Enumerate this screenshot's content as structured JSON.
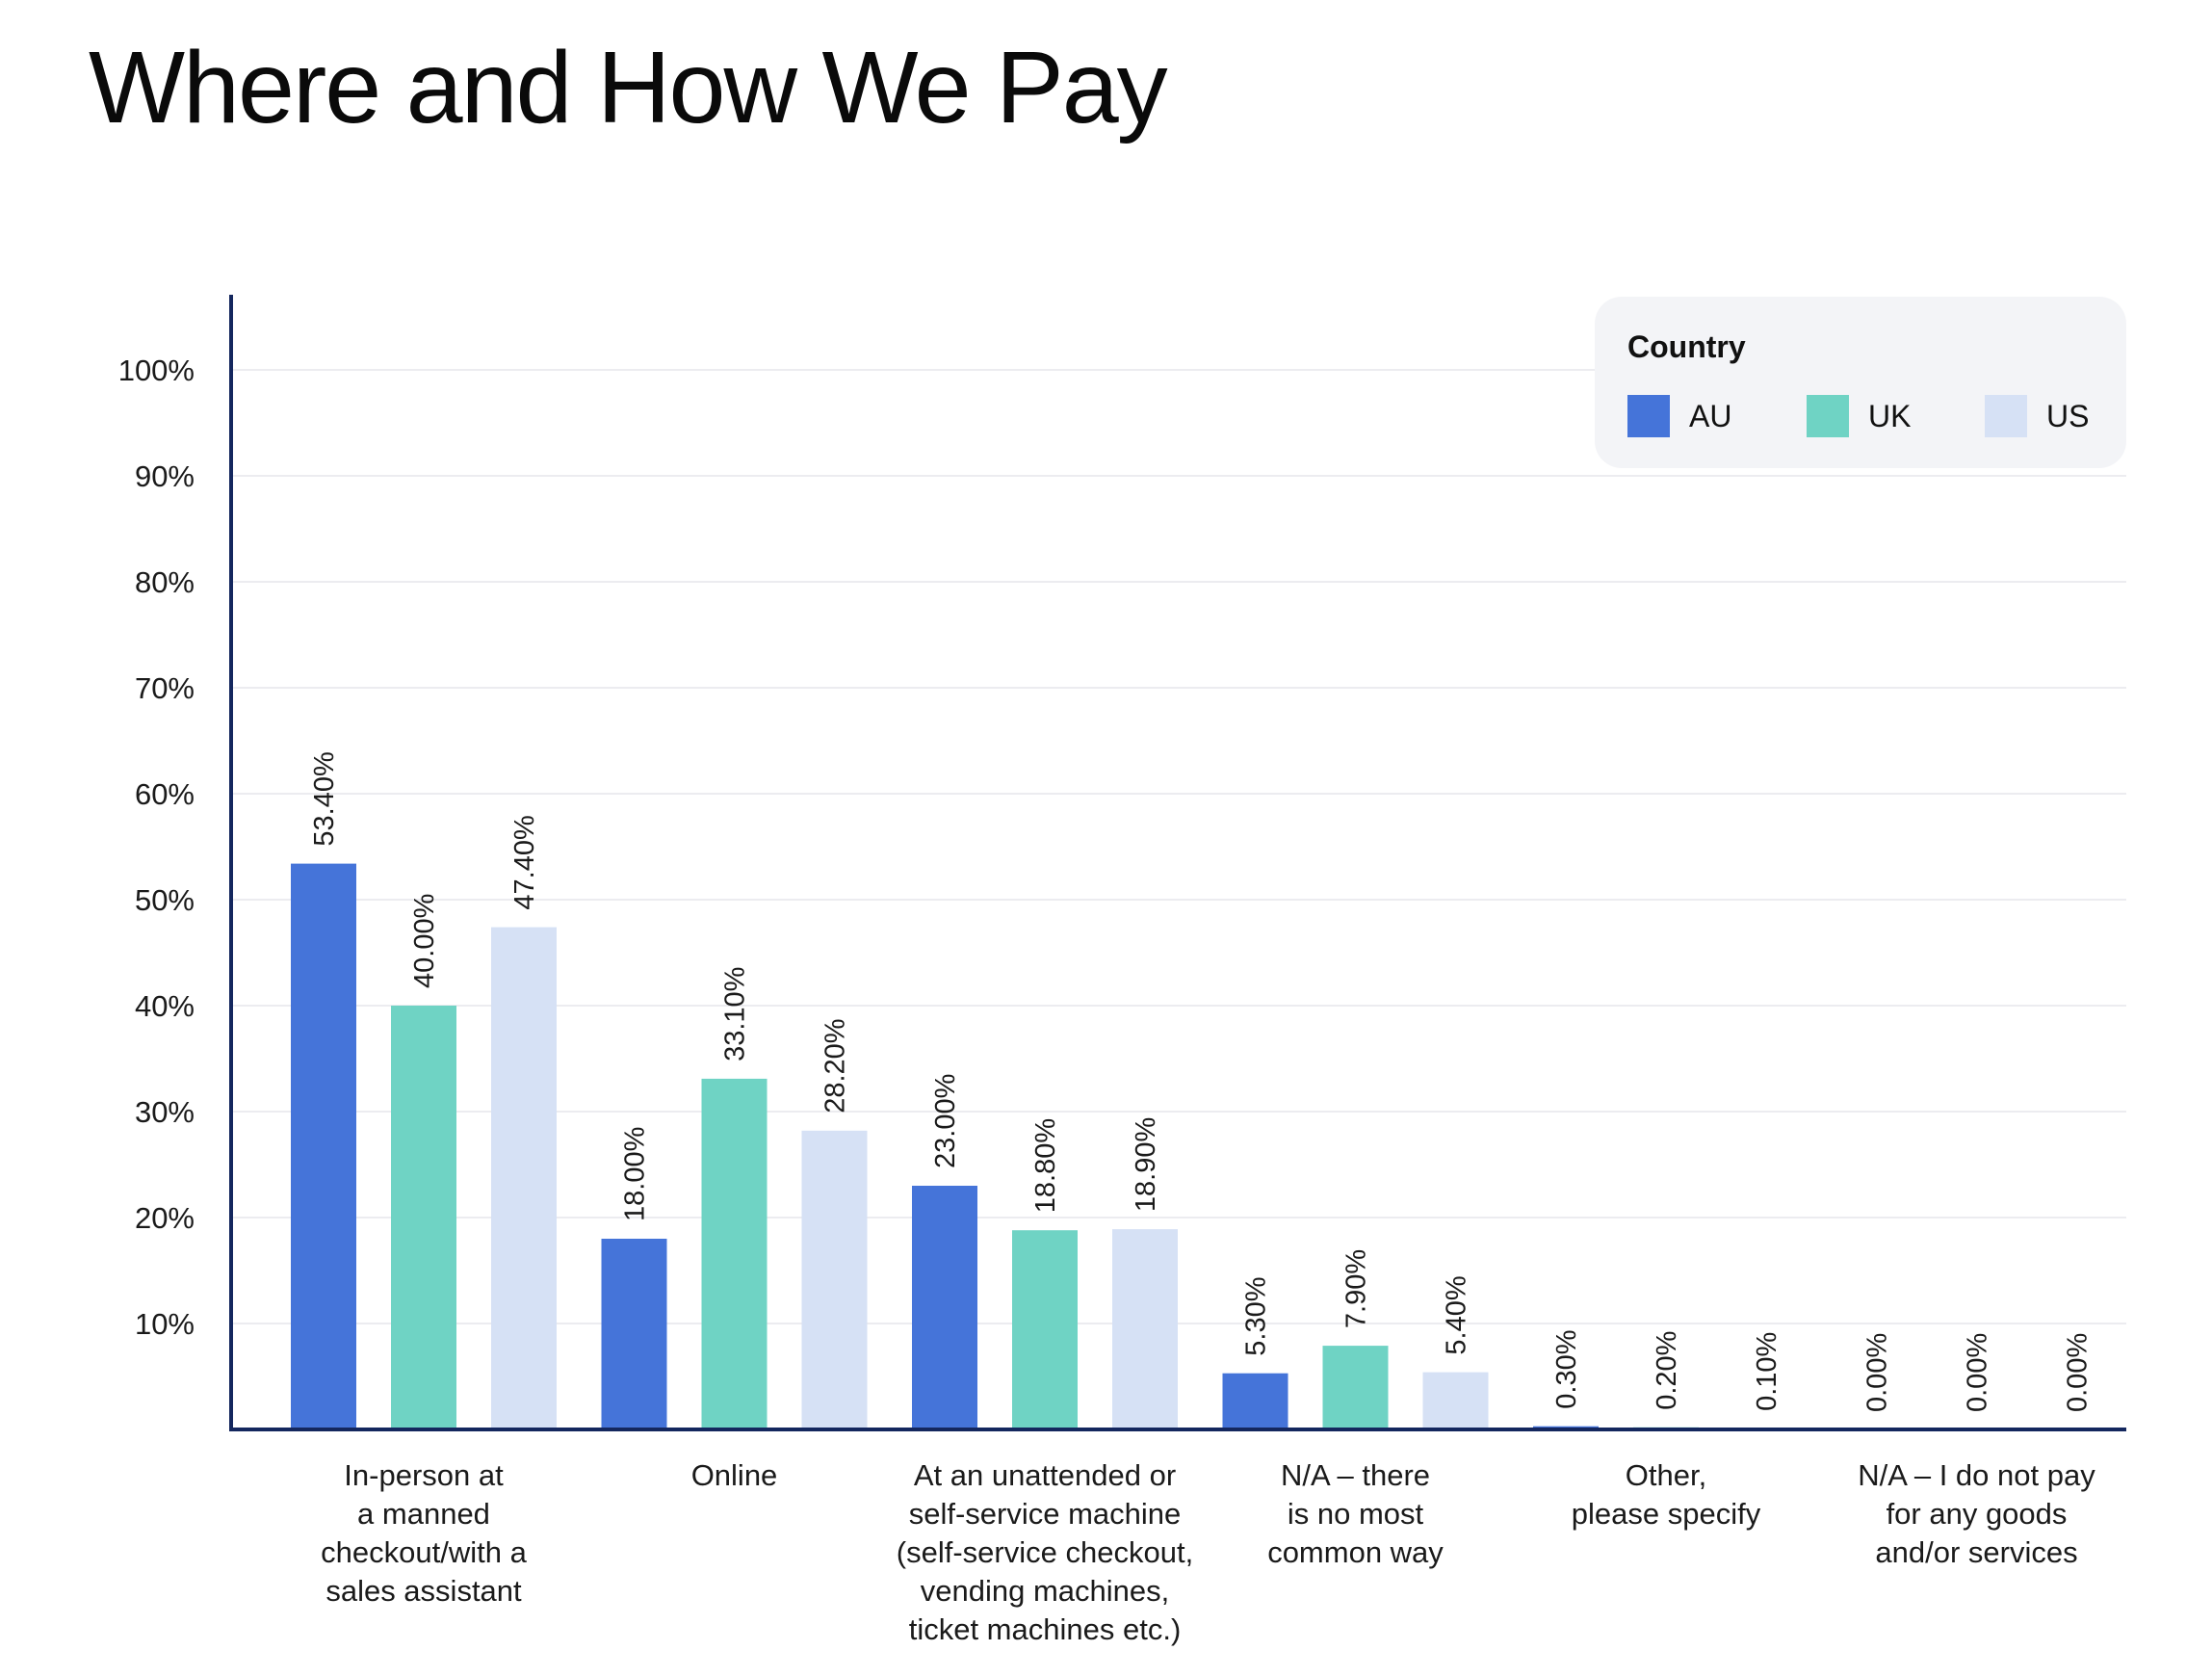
{
  "title": "Where and How We Pay",
  "legend": {
    "title": "Country",
    "items": [
      {
        "label": "AU",
        "color": "#4574d9"
      },
      {
        "label": "UK",
        "color": "#6fd3c4"
      },
      {
        "label": "US",
        "color": "#d6e1f5"
      }
    ]
  },
  "chart_data": {
    "type": "bar",
    "title": "Where and How We Pay",
    "xlabel": "",
    "ylabel": "",
    "ylim": [
      0,
      100
    ],
    "yticks": [
      10,
      20,
      30,
      40,
      50,
      60,
      70,
      80,
      90,
      100
    ],
    "ytick_labels": [
      "10%",
      "20%",
      "30%",
      "40%",
      "50%",
      "60%",
      "70%",
      "80%",
      "90%",
      "100%"
    ],
    "grid": true,
    "legend_position": "top-right",
    "categories": [
      "In-person at\na manned\ncheckout/with a\nsales assistant",
      "Online",
      "At an unattended or\nself-service machine\n(self-service checkout,\nvending machines,\nticket machines etc.)",
      "N/A – there\nis no most\ncommon way",
      "Other,\nplease specify",
      "N/A – I do not pay\nfor any goods\nand/or services"
    ],
    "series": [
      {
        "name": "AU",
        "color": "#4574d9",
        "values": [
          53.4,
          18.0,
          23.0,
          5.3,
          0.3,
          0.0
        ],
        "labels": [
          "53.40%",
          "18.00%",
          "23.00%",
          "5.30%",
          "0.30%",
          "0.00%"
        ]
      },
      {
        "name": "UK",
        "color": "#6fd3c4",
        "values": [
          40.0,
          33.1,
          18.8,
          7.9,
          0.2,
          0.0
        ],
        "labels": [
          "40.00%",
          "33.10%",
          "18.80%",
          "7.90%",
          "0.20%",
          "0.00%"
        ]
      },
      {
        "name": "US",
        "color": "#d6e1f5",
        "values": [
          47.4,
          28.2,
          18.9,
          5.4,
          0.1,
          0.0
        ],
        "labels": [
          "47.40%",
          "28.20%",
          "18.90%",
          "5.40%",
          "0.10%",
          "0.00%"
        ]
      }
    ]
  }
}
